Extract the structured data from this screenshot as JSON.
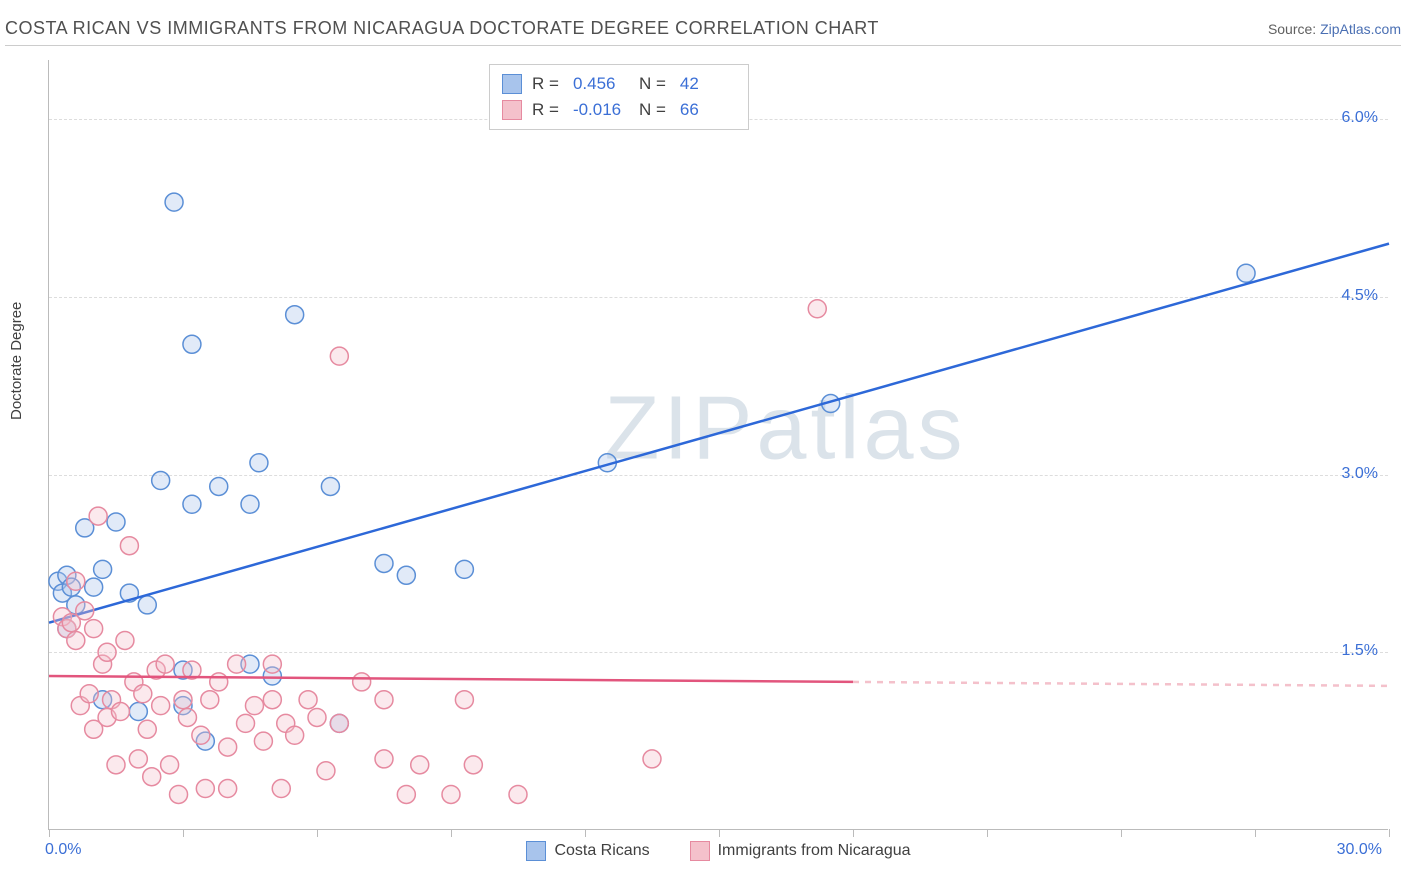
{
  "header": {
    "title": "COSTA RICAN VS IMMIGRANTS FROM NICARAGUA DOCTORATE DEGREE CORRELATION CHART",
    "source_prefix": "Source: ",
    "source_link": "ZipAtlas.com"
  },
  "chart": {
    "type": "scatter",
    "ylabel": "Doctorate Degree",
    "xlim": [
      0,
      30
    ],
    "ylim": [
      0,
      6.5
    ],
    "x_tick_step": 3,
    "x_label_min": "0.0%",
    "x_label_max": "30.0%",
    "y_ticks": [
      1.5,
      3.0,
      4.5,
      6.0
    ],
    "y_tick_labels": [
      "1.5%",
      "3.0%",
      "4.5%",
      "6.0%"
    ],
    "background_color": "#ffffff",
    "grid_color": "#dddddd",
    "axis_color": "#bbbbbb",
    "tick_label_color": "#3b6fd6",
    "marker_radius": 9,
    "marker_stroke_width": 1.5,
    "marker_fill_opacity": 0.35,
    "line_width": 2.5,
    "watermark": "ZIPatlas"
  },
  "series": [
    {
      "key": "costa_ricans",
      "label": "Costa Ricans",
      "color_fill": "#a8c4ec",
      "color_stroke": "#5b8fd6",
      "line_color": "#2d68d8",
      "R": "0.456",
      "N": "42",
      "regression": {
        "x1": 0,
        "y1": 1.75,
        "x2": 30,
        "y2": 4.95
      },
      "points": [
        [
          0.2,
          2.1
        ],
        [
          0.3,
          2.0
        ],
        [
          0.4,
          2.15
        ],
        [
          0.5,
          2.05
        ],
        [
          0.6,
          1.9
        ],
        [
          0.4,
          1.7
        ],
        [
          0.8,
          2.55
        ],
        [
          1.0,
          2.05
        ],
        [
          1.2,
          1.1
        ],
        [
          1.2,
          2.2
        ],
        [
          1.5,
          2.6
        ],
        [
          1.8,
          2.0
        ],
        [
          2.0,
          1.0
        ],
        [
          2.2,
          1.9
        ],
        [
          2.5,
          2.95
        ],
        [
          2.8,
          5.3
        ],
        [
          3.0,
          1.35
        ],
        [
          3.0,
          1.05
        ],
        [
          3.2,
          2.75
        ],
        [
          3.2,
          4.1
        ],
        [
          3.5,
          0.75
        ],
        [
          3.8,
          2.9
        ],
        [
          4.5,
          2.75
        ],
        [
          4.5,
          1.4
        ],
        [
          4.7,
          3.1
        ],
        [
          5.0,
          1.3
        ],
        [
          5.5,
          4.35
        ],
        [
          6.3,
          2.9
        ],
        [
          6.5,
          0.9
        ],
        [
          7.5,
          2.25
        ],
        [
          8.0,
          2.15
        ],
        [
          9.3,
          2.2
        ],
        [
          12.5,
          3.1
        ],
        [
          17.5,
          3.6
        ],
        [
          26.8,
          4.7
        ]
      ]
    },
    {
      "key": "nicaragua_immigrants",
      "label": "Immigrants from Nicaragua",
      "color_fill": "#f4c1cb",
      "color_stroke": "#e68aa0",
      "line_color": "#e2557d",
      "R": "-0.016",
      "N": "66",
      "regression": {
        "x1": 0,
        "y1": 1.3,
        "x2": 18,
        "y2": 1.25
      },
      "regression_dashed_after": 18,
      "regression_dashed_end": 30,
      "points": [
        [
          0.3,
          1.8
        ],
        [
          0.4,
          1.7
        ],
        [
          0.5,
          1.75
        ],
        [
          0.6,
          1.6
        ],
        [
          0.6,
          2.1
        ],
        [
          0.7,
          1.05
        ],
        [
          0.8,
          1.85
        ],
        [
          0.9,
          1.15
        ],
        [
          1.0,
          1.7
        ],
        [
          1.0,
          0.85
        ],
        [
          1.1,
          2.65
        ],
        [
          1.2,
          1.4
        ],
        [
          1.3,
          0.95
        ],
        [
          1.3,
          1.5
        ],
        [
          1.4,
          1.1
        ],
        [
          1.5,
          0.55
        ],
        [
          1.6,
          1.0
        ],
        [
          1.7,
          1.6
        ],
        [
          1.8,
          2.4
        ],
        [
          1.9,
          1.25
        ],
        [
          2.0,
          0.6
        ],
        [
          2.1,
          1.15
        ],
        [
          2.2,
          0.85
        ],
        [
          2.3,
          0.45
        ],
        [
          2.4,
          1.35
        ],
        [
          2.5,
          1.05
        ],
        [
          2.6,
          1.4
        ],
        [
          2.7,
          0.55
        ],
        [
          2.9,
          0.3
        ],
        [
          3.0,
          1.1
        ],
        [
          3.1,
          0.95
        ],
        [
          3.2,
          1.35
        ],
        [
          3.4,
          0.8
        ],
        [
          3.5,
          0.35
        ],
        [
          3.6,
          1.1
        ],
        [
          3.8,
          1.25
        ],
        [
          4.0,
          0.7
        ],
        [
          4.0,
          0.35
        ],
        [
          4.2,
          1.4
        ],
        [
          4.4,
          0.9
        ],
        [
          4.6,
          1.05
        ],
        [
          4.8,
          0.75
        ],
        [
          5.0,
          1.1
        ],
        [
          5.0,
          1.4
        ],
        [
          5.2,
          0.35
        ],
        [
          5.3,
          0.9
        ],
        [
          5.5,
          0.8
        ],
        [
          5.8,
          1.1
        ],
        [
          6.0,
          0.95
        ],
        [
          6.2,
          0.5
        ],
        [
          6.5,
          0.9
        ],
        [
          6.5,
          4.0
        ],
        [
          7.0,
          1.25
        ],
        [
          7.5,
          0.6
        ],
        [
          7.5,
          1.1
        ],
        [
          8.0,
          0.3
        ],
        [
          8.3,
          0.55
        ],
        [
          9.0,
          0.3
        ],
        [
          9.3,
          1.1
        ],
        [
          9.5,
          0.55
        ],
        [
          10.5,
          0.3
        ],
        [
          13.5,
          0.6
        ],
        [
          17.2,
          4.4
        ]
      ]
    }
  ],
  "legend": {
    "swatch_size": 20
  }
}
